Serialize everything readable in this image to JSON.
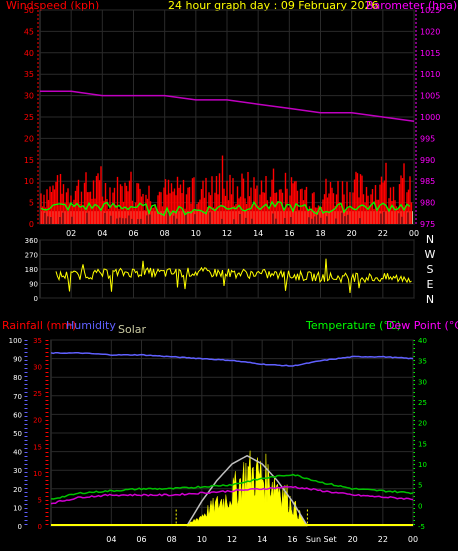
{
  "colors": {
    "wind_label": "#ff0000",
    "baro_label": "#ff00ff",
    "title": "#ffff00",
    "frame": "#555555",
    "grid": "#333333",
    "wind_bars": "#ff0000",
    "gust": "#00ff00",
    "calm": "#c8ffc8",
    "direction": "#ffff00",
    "humidity": "#6060ff",
    "temperature": "#00c000",
    "dewpoint": "#d000d0",
    "rain": "#ff0000",
    "solar": "#ffff00",
    "solar_curve": "#c0c0c0",
    "axis_text": "#ffffff"
  },
  "chart_data": [
    {
      "type": "bar",
      "title": "24 hour graph day : 09 February 2026",
      "ylabel_left": "Windspeed (kph)",
      "ylabel_right": "Barometer (hpa)",
      "x_ticks": [
        "02",
        "04",
        "06",
        "08",
        "10",
        "12",
        "14",
        "16",
        "18",
        "20",
        "22",
        "00"
      ],
      "ylim_left": [
        0,
        50
      ],
      "y_ticks_left": [
        "0",
        "5",
        "10",
        "15",
        "20",
        "25",
        "30",
        "35",
        "40",
        "45",
        "50"
      ],
      "ylim_right": [
        975,
        1025
      ],
      "y_ticks_right": [
        "975",
        "980",
        "985",
        "990",
        "995",
        "1000",
        "1005",
        "1010",
        "1015",
        "1020",
        "1025"
      ],
      "grid": true,
      "series": [
        {
          "name": "Windspeed",
          "style": "bars",
          "x": [
            0,
            2,
            4,
            6,
            8,
            10,
            12,
            14,
            16,
            18,
            20,
            22,
            24
          ],
          "values": [
            9,
            10,
            10,
            9,
            9,
            9,
            10,
            10,
            9,
            9,
            10,
            10,
            9
          ]
        },
        {
          "name": "Gust",
          "style": "line",
          "x": [
            0,
            2,
            4,
            6,
            8,
            10,
            12,
            14,
            16,
            18,
            20,
            22,
            24
          ],
          "values": [
            3,
            3,
            3,
            3,
            2,
            2,
            3,
            3,
            3,
            2,
            3,
            3,
            3
          ]
        },
        {
          "name": "Barometer",
          "style": "line",
          "axis": "right",
          "x": [
            0,
            2,
            4,
            6,
            8,
            10,
            12,
            14,
            16,
            18,
            20,
            22,
            24
          ],
          "values": [
            1006,
            1006,
            1005,
            1005,
            1005,
            1004,
            1004,
            1003,
            1002,
            1001,
            1001,
            1000,
            999
          ]
        }
      ]
    },
    {
      "type": "line",
      "y_ticks_left": [
        "0",
        "90",
        "180",
        "270",
        "360"
      ],
      "ylim": [
        0,
        360
      ],
      "compass": [
        "N",
        "W",
        "S",
        "E",
        "N"
      ],
      "series": [
        {
          "name": "Wind direction",
          "x": [
            0,
            2,
            4,
            6,
            8,
            10,
            12,
            14,
            16,
            18,
            20,
            22,
            24
          ],
          "values": [
            135,
            140,
            150,
            160,
            155,
            160,
            155,
            150,
            140,
            130,
            125,
            125,
            120
          ]
        }
      ]
    },
    {
      "type": "line",
      "ylabel_left_1": "Rainfall (mm)",
      "ylabel_left_2": "Humidity",
      "ylabel_solar": "Solar",
      "ylabel_right_1": "Temperature (°C)",
      "ylabel_right_2": "Dew Point (°C)",
      "x_ticks": [
        "04",
        "06",
        "08",
        "10",
        "12",
        "14",
        "16",
        "Sun",
        "Set",
        "20",
        "22",
        "00"
      ],
      "ylim_humidity": [
        0,
        100
      ],
      "y_ticks_humidity": [
        "0",
        "10",
        "20",
        "30",
        "40",
        "50",
        "60",
        "70",
        "80",
        "90",
        "100"
      ],
      "ylim_rain": [
        0,
        35
      ],
      "y_ticks_rain": [
        "0",
        "5",
        "10",
        "15",
        "20",
        "25",
        "30",
        "35"
      ],
      "ylim_temp": [
        -5,
        40
      ],
      "y_ticks_temp": [
        "-5",
        "0",
        "5",
        "10",
        "15",
        "20",
        "25",
        "30",
        "35",
        "40"
      ],
      "grid": true,
      "series": [
        {
          "name": "Humidity",
          "x": [
            0,
            2,
            4,
            6,
            8,
            10,
            12,
            14,
            16,
            18,
            20,
            22,
            24
          ],
          "values": [
            93,
            93,
            92,
            92,
            91,
            90,
            89,
            87,
            86,
            89,
            91,
            91,
            90
          ]
        },
        {
          "name": "Temperature",
          "x": [
            0,
            2,
            4,
            6,
            8,
            10,
            12,
            14,
            16,
            18,
            20,
            22,
            24
          ],
          "values": [
            1.5,
            3,
            3.5,
            4,
            4,
            4.5,
            5,
            6.5,
            7.5,
            5.5,
            4,
            3.5,
            3
          ]
        },
        {
          "name": "Dew Point",
          "x": [
            0,
            2,
            4,
            6,
            8,
            10,
            12,
            14,
            16,
            18,
            20,
            22,
            24
          ],
          "values": [
            0.5,
            2,
            2.5,
            2.5,
            2.5,
            3,
            3.5,
            4,
            4.5,
            3.5,
            2.5,
            2,
            1.5
          ]
        },
        {
          "name": "Solar",
          "style": "area",
          "x": [
            9,
            10,
            11,
            12,
            13,
            14,
            15,
            16,
            17
          ],
          "values": [
            0,
            3,
            6,
            9,
            15,
            14,
            12,
            6,
            0
          ]
        },
        {
          "name": "Solar max",
          "style": "curve",
          "x": [
            9,
            10,
            11,
            12,
            13,
            14,
            15,
            16,
            17
          ],
          "values": [
            0,
            6,
            11,
            15,
            17,
            15,
            11,
            6,
            0
          ]
        }
      ]
    }
  ]
}
